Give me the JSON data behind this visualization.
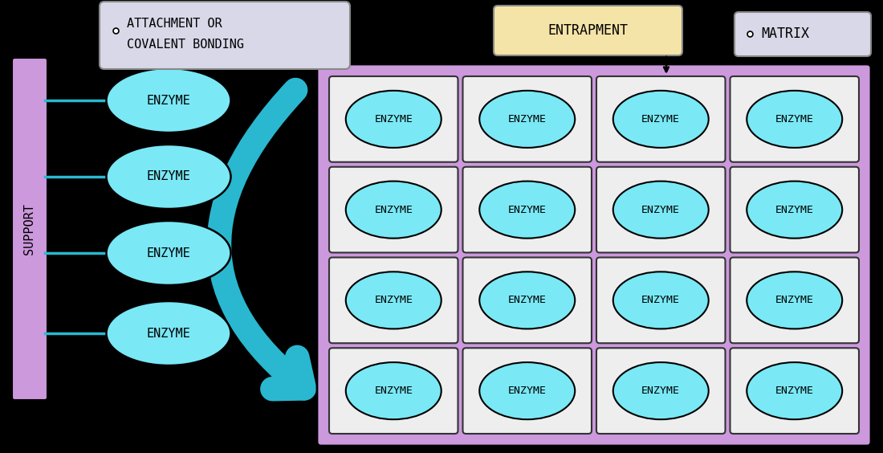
{
  "bg_color": "#000000",
  "support_color": "#cc99dd",
  "support_label": "SUPPORT",
  "enzyme_fill": "#7ae8f5",
  "enzyme_edge": "#000000",
  "enzyme_label": "ENZYME",
  "line_color": "#29b8d0",
  "matrix_fill": "#cc99dd",
  "cell_fill": "#eeeeee",
  "cell_edge": "#333333",
  "arrow_color": "#29b8d0",
  "attach_fill": "#d8d8e8",
  "attach_edge": "#888888",
  "entrap_fill": "#f5e4a8",
  "entrap_edge": "#888888",
  "matrix_label_fill": "#d8d8e8",
  "matrix_label_edge": "#888888",
  "font_color": "#000000",
  "label_attachment_line1": "ATTACHMENT OR",
  "label_attachment_line2": "COVALENT BONDING",
  "label_entrapment": "ENTRAPMENT",
  "label_matrix": "MATRIX"
}
